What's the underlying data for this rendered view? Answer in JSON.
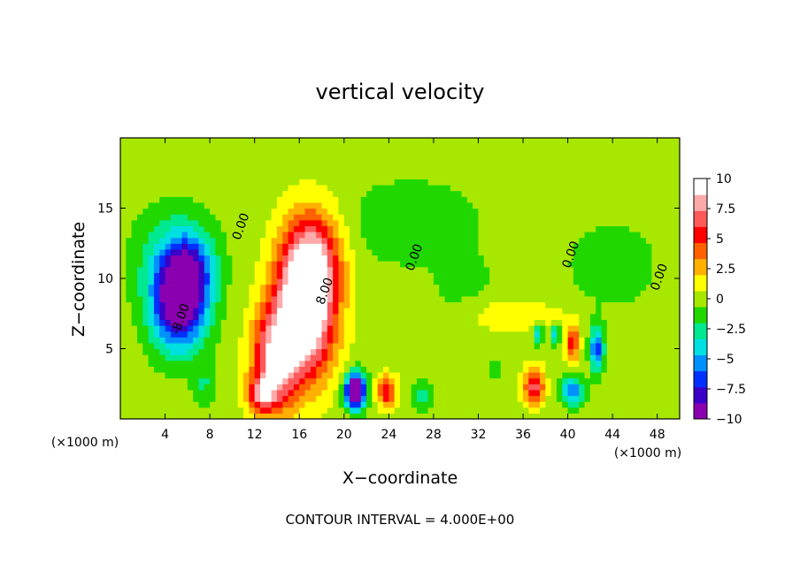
{
  "chart_data": {
    "type": "heatmap",
    "title": "vertical velocity",
    "xlabel": "X−coordinate",
    "ylabel": "Z−coordinate",
    "x_unit_left": "(×1000 m)",
    "x_unit_right": "(×1000 m)",
    "footer": "CONTOUR INTERVAL = 4.000E+00",
    "xlim": [
      0,
      50
    ],
    "ylim": [
      0,
      20
    ],
    "x_ticks": [
      4,
      8,
      12,
      16,
      20,
      24,
      28,
      32,
      36,
      40,
      44,
      48
    ],
    "x_tick_labels": [
      "4",
      "8",
      "12",
      "16",
      "20",
      "24",
      "28",
      "32",
      "36",
      "40",
      "44",
      "48"
    ],
    "y_ticks": [
      5,
      10,
      15
    ],
    "y_tick_labels": [
      "5",
      "10",
      "15"
    ],
    "colorbar": {
      "range": [
        -10,
        10
      ],
      "ticks": [
        10,
        7.5,
        5,
        2.5,
        0,
        -2.5,
        -5,
        -7.5,
        -10
      ],
      "tick_labels": [
        "10",
        "7.5",
        "5",
        "2.5",
        "0",
        "−2.5",
        "−5",
        "−7.5",
        "−10"
      ],
      "colors": [
        "#8a00b0",
        "#3a00c8",
        "#0030ff",
        "#0090ff",
        "#00e0e0",
        "#00e890",
        "#20d800",
        "#a8e800",
        "#ffff00",
        "#ffb000",
        "#ff6000",
        "#ff0000",
        "#ff5a5a",
        "#ffaaaa",
        "#ffffff"
      ]
    },
    "contour_labels": [
      {
        "text": "0.00",
        "x": 11.1,
        "z": 13.6
      },
      {
        "text": "0.00",
        "x": 26.6,
        "z": 11.4
      },
      {
        "text": "0.00",
        "x": 40.6,
        "z": 11.6
      },
      {
        "text": "0.00",
        "x": 48.5,
        "z": 10.0
      },
      {
        "text": "8.00",
        "x": 18.6,
        "z": 9.0
      },
      {
        "text": "-8.00",
        "x": 5.7,
        "z": 7.0
      }
    ],
    "features": [
      {
        "x": 5.2,
        "z": 8.1,
        "w": -10,
        "sx": 2.4,
        "sz": 3.2
      },
      {
        "x": 6.2,
        "z": 10.6,
        "w": -5,
        "sx": 2.0,
        "sz": 2.5
      },
      {
        "x": 4.8,
        "z": 11.5,
        "w": -3,
        "sx": 3.5,
        "sz": 3.5
      },
      {
        "x": 7.5,
        "z": 2.4,
        "w": -2,
        "sx": 1.0,
        "sz": 1.6
      },
      {
        "x": 16.5,
        "z": 7.6,
        "w": 12,
        "sx": 2.6,
        "sz": 4.6
      },
      {
        "x": 17.2,
        "z": 11.6,
        "w": 6,
        "sx": 2.6,
        "sz": 3.5
      },
      {
        "x": 13.8,
        "z": 4.2,
        "w": 8,
        "sx": 2.0,
        "sz": 3.6
      },
      {
        "x": 12.6,
        "z": 1.8,
        "w": 6,
        "sx": 1.2,
        "sz": 1.2
      },
      {
        "x": 21.0,
        "z": 2.0,
        "w": -14,
        "sx": 0.9,
        "sz": 1.2
      },
      {
        "x": 23.8,
        "z": 2.0,
        "w": 6,
        "sx": 0.9,
        "sz": 1.1
      },
      {
        "x": 27.0,
        "z": 1.7,
        "w": -2.5,
        "sx": 0.9,
        "sz": 1.2
      },
      {
        "x": 37.0,
        "z": 2.3,
        "w": 7,
        "sx": 0.9,
        "sz": 1.3
      },
      {
        "x": 40.4,
        "z": 5.4,
        "w": 6,
        "sx": 0.6,
        "sz": 1.2
      },
      {
        "x": 40.4,
        "z": 2.0,
        "w": -6,
        "sx": 1.0,
        "sz": 1.0
      },
      {
        "x": 42.6,
        "z": 5.0,
        "w": -7,
        "sx": 0.6,
        "sz": 1.6
      },
      {
        "x": 37.4,
        "z": 6.1,
        "w": -5,
        "sx": 0.4,
        "sz": 0.7
      },
      {
        "x": 38.9,
        "z": 6.0,
        "w": -5,
        "sx": 0.4,
        "sz": 0.7
      },
      {
        "x": 33.4,
        "z": 3.5,
        "w": -1.5,
        "sx": 0.6,
        "sz": 0.9
      },
      {
        "x": 26.0,
        "z": 14.0,
        "w": -1.8,
        "sx": 6.0,
        "sz": 3.0
      },
      {
        "x": 44.0,
        "z": 11.0,
        "w": -1.6,
        "sx": 4.0,
        "sz": 3.0
      },
      {
        "x": 31.0,
        "z": 9.0,
        "w": -1.2,
        "sx": 3.0,
        "sz": 2.5
      },
      {
        "x": 33.0,
        "z": 7.5,
        "w": 1.5,
        "sx": 3.0,
        "sz": 1.5
      },
      {
        "x": 38.0,
        "z": 7.2,
        "w": 1.2,
        "sx": 3.0,
        "sz": 1.2
      }
    ]
  }
}
